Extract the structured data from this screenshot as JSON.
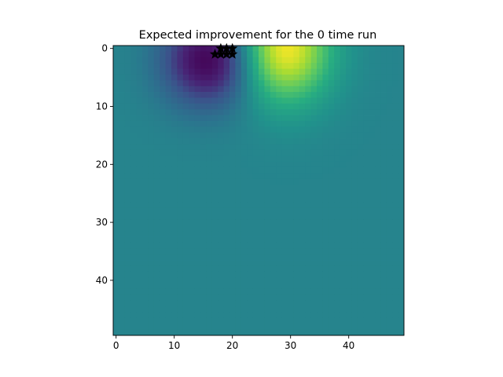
{
  "chart_data": {
    "type": "heatmap",
    "title": "Expected improvement for the 0 time run",
    "xlabel": "",
    "ylabel": "",
    "grid": false,
    "legend": "none",
    "colormap": "viridis",
    "rows": 50,
    "cols": 50,
    "xlim": [
      -0.5,
      49.5
    ],
    "ylim": [
      49.5,
      -0.5
    ],
    "xticks": [
      0,
      10,
      20,
      30,
      40
    ],
    "yticks": [
      0,
      10,
      20,
      30,
      40
    ],
    "baseline_value": 0.45,
    "features": [
      {
        "kind": "minimum",
        "center_col": 16,
        "center_row": 2,
        "spread_col": 5.5,
        "spread_row": 5.5,
        "amplitude": -0.45
      },
      {
        "kind": "maximum",
        "center_col": 29,
        "center_row": 0,
        "spread_col": 5.5,
        "spread_row": 6.5,
        "amplitude": 0.55
      }
    ],
    "markers": {
      "symbol": "star",
      "color": "#000000",
      "points": [
        {
          "x": 18,
          "y": 1
        },
        {
          "x": 19,
          "y": 0
        },
        {
          "x": 20,
          "y": 0
        },
        {
          "x": 17,
          "y": 1
        },
        {
          "x": 18,
          "y": 0
        },
        {
          "x": 19,
          "y": 1
        },
        {
          "x": 20,
          "y": 1
        }
      ]
    }
  }
}
